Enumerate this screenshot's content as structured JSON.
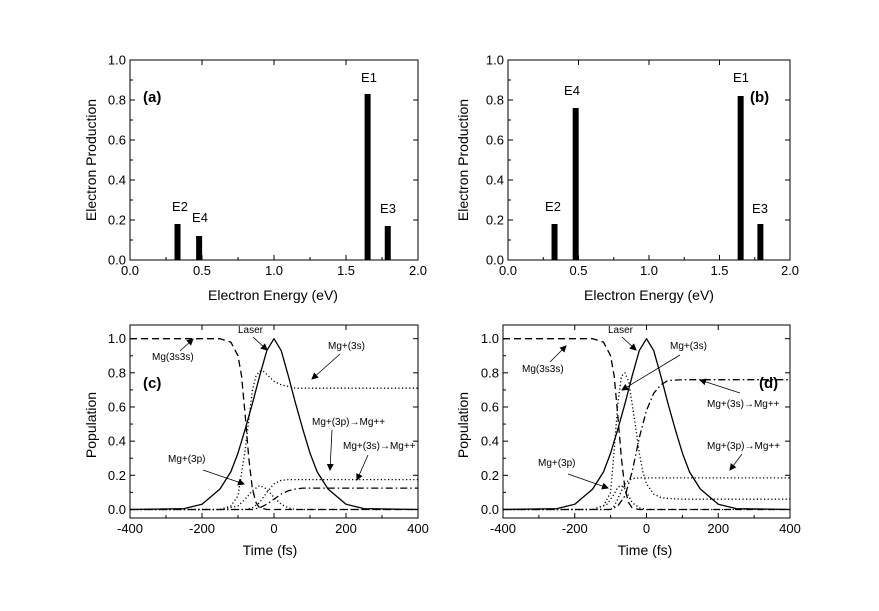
{
  "chart_data": [
    {
      "type": "bar",
      "panel_label": "(a)",
      "xlabel": "Electron Energy (eV)",
      "ylabel": "Electron Production",
      "xlim": [
        0.0,
        2.0
      ],
      "ylim": [
        0.0,
        1.0
      ],
      "xticks": [
        "0.0",
        "0.5",
        "1.0",
        "1.5",
        "2.0"
      ],
      "yticks": [
        "0.0",
        "0.2",
        "0.4",
        "0.6",
        "0.8",
        "1.0"
      ],
      "bars": [
        {
          "label": "E2",
          "x": 0.33,
          "value": 0.18
        },
        {
          "label": "E4",
          "x": 0.48,
          "value": 0.12
        },
        {
          "label": "E1",
          "x": 1.65,
          "value": 0.83
        },
        {
          "label": "E3",
          "x": 1.79,
          "value": 0.17
        }
      ]
    },
    {
      "type": "bar",
      "panel_label": "(b)",
      "xlabel": "Electron Energy (eV)",
      "ylabel": "Electron Production",
      "xlim": [
        0.0,
        2.0
      ],
      "ylim": [
        0.0,
        1.0
      ],
      "xticks": [
        "0.0",
        "0.5",
        "1.0",
        "1.5",
        "2.0"
      ],
      "yticks": [
        "0.0",
        "0.2",
        "0.4",
        "0.6",
        "0.8",
        "1.0"
      ],
      "bars": [
        {
          "label": "E2",
          "x": 0.33,
          "value": 0.18
        },
        {
          "label": "E4",
          "x": 0.48,
          "value": 0.76
        },
        {
          "label": "E1",
          "x": 1.65,
          "value": 0.82
        },
        {
          "label": "E3",
          "x": 1.79,
          "value": 0.18
        }
      ]
    },
    {
      "type": "line",
      "panel_label": "(c)",
      "xlabel": "Time (fs)",
      "ylabel": "Population",
      "xlim": [
        -400,
        400
      ],
      "ylim": [
        -0.05,
        1.08
      ],
      "xticks": [
        "-400",
        "-200",
        "0",
        "200",
        "400"
      ],
      "yticks": [
        "0.0",
        "0.2",
        "0.4",
        "0.6",
        "0.8",
        "1.0"
      ],
      "series": [
        {
          "name": "Mg(3s3s)",
          "style": "dash",
          "x": [
            -400,
            -150,
            -120,
            -100,
            -90,
            -80,
            -70,
            -60,
            -50,
            -40,
            -20,
            0,
            400
          ],
          "y": [
            1.0,
            1.0,
            0.98,
            0.9,
            0.78,
            0.55,
            0.3,
            0.12,
            0.04,
            0.01,
            0.0,
            0.0,
            0.0
          ]
        },
        {
          "name": "Laser",
          "style": "solid",
          "x": [
            -400,
            -250,
            -200,
            -150,
            -120,
            -100,
            -80,
            -60,
            -40,
            -20,
            0,
            20,
            40,
            60,
            80,
            100,
            120,
            150,
            200,
            250,
            400
          ],
          "y": [
            0.0,
            0.005,
            0.03,
            0.12,
            0.22,
            0.33,
            0.47,
            0.62,
            0.78,
            0.93,
            1.0,
            0.93,
            0.78,
            0.62,
            0.47,
            0.33,
            0.22,
            0.12,
            0.03,
            0.005,
            0.0
          ]
        },
        {
          "name": "Mg+(3s)",
          "style": "dot",
          "x": [
            -400,
            -150,
            -120,
            -100,
            -80,
            -60,
            -50,
            -40,
            -30,
            -20,
            -10,
            0,
            20,
            40,
            60,
            100,
            400
          ],
          "y": [
            0.0,
            0.0,
            0.02,
            0.08,
            0.35,
            0.7,
            0.78,
            0.81,
            0.81,
            0.79,
            0.77,
            0.75,
            0.73,
            0.72,
            0.71,
            0.71,
            0.71
          ]
        },
        {
          "name": "Mg+(3p)",
          "style": "dot",
          "x": [
            -400,
            -150,
            -100,
            -80,
            -60,
            -40,
            -20,
            0,
            20,
            40,
            60,
            100,
            400
          ],
          "y": [
            0.0,
            0.0,
            0.02,
            0.06,
            0.11,
            0.14,
            0.12,
            0.07,
            0.03,
            0.01,
            0.0,
            0.0,
            0.0
          ]
        },
        {
          "name": "Mg+(3p)→Mg++",
          "style": "dot",
          "x": [
            -400,
            -80,
            -60,
            -40,
            -20,
            0,
            20,
            40,
            60,
            100,
            400
          ],
          "y": [
            0.0,
            0.0,
            0.01,
            0.04,
            0.1,
            0.15,
            0.17,
            0.175,
            0.175,
            0.175,
            0.175
          ]
        },
        {
          "name": "Mg+(3s)→Mg++",
          "style": "dashdot",
          "x": [
            -400,
            -60,
            -40,
            -20,
            0,
            20,
            40,
            60,
            80,
            100,
            400
          ],
          "y": [
            0.0,
            0.0,
            0.01,
            0.03,
            0.06,
            0.09,
            0.11,
            0.12,
            0.125,
            0.125,
            0.125
          ]
        }
      ],
      "annotations": [
        "Laser",
        "Mg(3s3s)",
        "Mg+(3s)",
        "Mg+(3p)→Mg++",
        "Mg+(3s)→Mg++",
        "Mg+(3p)"
      ]
    },
    {
      "type": "line",
      "panel_label": "(d)",
      "xlabel": "Time (fs)",
      "ylabel": "Population",
      "xlim": [
        -400,
        400
      ],
      "ylim": [
        -0.05,
        1.08
      ],
      "xticks": [
        "-400",
        "-200",
        "0",
        "200",
        "400"
      ],
      "yticks": [
        "0.0",
        "0.2",
        "0.4",
        "0.6",
        "0.8",
        "1.0"
      ],
      "series": [
        {
          "name": "Mg(3s3s)",
          "style": "dash",
          "x": [
            -400,
            -150,
            -120,
            -100,
            -90,
            -80,
            -70,
            -60,
            -50,
            -40,
            -20,
            0,
            400
          ],
          "y": [
            1.0,
            1.0,
            0.98,
            0.9,
            0.78,
            0.55,
            0.3,
            0.12,
            0.04,
            0.01,
            0.0,
            0.0,
            0.0
          ]
        },
        {
          "name": "Laser",
          "style": "solid",
          "x": [
            -400,
            -250,
            -200,
            -150,
            -120,
            -100,
            -80,
            -60,
            -40,
            -20,
            0,
            20,
            40,
            60,
            80,
            100,
            120,
            150,
            200,
            250,
            400
          ],
          "y": [
            0.0,
            0.005,
            0.03,
            0.12,
            0.22,
            0.33,
            0.47,
            0.62,
            0.78,
            0.93,
            1.0,
            0.93,
            0.78,
            0.62,
            0.47,
            0.33,
            0.22,
            0.12,
            0.03,
            0.005,
            0.0
          ]
        },
        {
          "name": "Mg+(3s)",
          "style": "dot",
          "x": [
            -400,
            -150,
            -120,
            -100,
            -90,
            -80,
            -70,
            -60,
            -50,
            -40,
            -30,
            -20,
            -10,
            0,
            20,
            40,
            60,
            100,
            400
          ],
          "y": [
            0.0,
            0.0,
            0.02,
            0.1,
            0.35,
            0.62,
            0.78,
            0.8,
            0.75,
            0.62,
            0.48,
            0.33,
            0.22,
            0.15,
            0.09,
            0.07,
            0.065,
            0.06,
            0.06
          ]
        },
        {
          "name": "Mg+(3p)",
          "style": "dot",
          "x": [
            -400,
            -150,
            -110,
            -90,
            -80,
            -70,
            -60,
            -50,
            -40,
            -20,
            0,
            400
          ],
          "y": [
            0.0,
            0.0,
            0.03,
            0.09,
            0.13,
            0.14,
            0.12,
            0.08,
            0.04,
            0.01,
            0.0,
            0.0
          ]
        },
        {
          "name": "Mg+(3p)→Mg++",
          "style": "dot",
          "x": [
            -400,
            -100,
            -90,
            -80,
            -70,
            -60,
            -50,
            -40,
            -20,
            0,
            400
          ],
          "y": [
            0.0,
            0.0,
            0.02,
            0.06,
            0.11,
            0.15,
            0.17,
            0.18,
            0.185,
            0.185,
            0.185
          ]
        },
        {
          "name": "Mg+(3s)→Mg++",
          "style": "dashdot",
          "x": [
            -400,
            -100,
            -80,
            -60,
            -40,
            -20,
            0,
            20,
            40,
            60,
            100,
            400
          ],
          "y": [
            0.0,
            0.0,
            0.02,
            0.08,
            0.22,
            0.42,
            0.58,
            0.68,
            0.73,
            0.755,
            0.76,
            0.76
          ]
        }
      ],
      "annotations": [
        "Laser",
        "Mg(3s3s)",
        "Mg+(3s)",
        "Mg+(3s)→Mg++",
        "Mg+(3p)→Mg++",
        "Mg+(3p)"
      ]
    }
  ]
}
